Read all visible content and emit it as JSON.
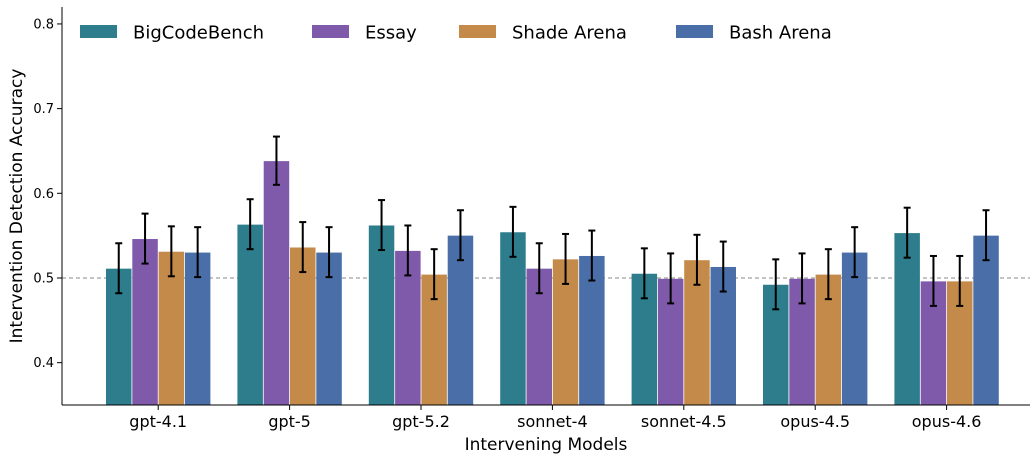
{
  "chart_data": {
    "type": "bar",
    "xlabel": "Intervening Models",
    "ylabel": "Intervention Detection Accuracy",
    "ylim": [
      0.35,
      0.82
    ],
    "yticks": [
      "0.4",
      "0.5",
      "0.6",
      "0.7",
      "0.8"
    ],
    "reference_line": 0.5,
    "legend_position": "top-left",
    "categories": [
      "gpt-4.1",
      "gpt-5",
      "gpt-5.2",
      "sonnet-4",
      "sonnet-4.5",
      "opus-4.5",
      "opus-4.6"
    ],
    "series": [
      {
        "name": "BigCodeBench",
        "color": "#2e7d8c",
        "values": [
          0.511,
          0.563,
          0.562,
          0.554,
          0.505,
          0.492,
          0.553
        ],
        "error_low": [
          0.482,
          0.534,
          0.533,
          0.525,
          0.476,
          0.463,
          0.524
        ],
        "error_high": [
          0.541,
          0.593,
          0.592,
          0.584,
          0.535,
          0.522,
          0.583
        ]
      },
      {
        "name": "Essay",
        "color": "#7f5aaa",
        "values": [
          0.546,
          0.638,
          0.532,
          0.511,
          0.499,
          0.499,
          0.496
        ],
        "error_low": [
          0.517,
          0.61,
          0.503,
          0.482,
          0.47,
          0.47,
          0.467
        ],
        "error_high": [
          0.576,
          0.667,
          0.562,
          0.541,
          0.529,
          0.529,
          0.526
        ]
      },
      {
        "name": "Shade Arena",
        "color": "#c48a4a",
        "values": [
          0.531,
          0.536,
          0.504,
          0.522,
          0.521,
          0.504,
          0.496
        ],
        "error_low": [
          0.502,
          0.507,
          0.475,
          0.493,
          0.492,
          0.475,
          0.467
        ],
        "error_high": [
          0.561,
          0.566,
          0.534,
          0.552,
          0.551,
          0.534,
          0.526
        ]
      },
      {
        "name": "Bash Arena",
        "color": "#4a6fa8",
        "values": [
          0.53,
          0.53,
          0.55,
          0.526,
          0.513,
          0.53,
          0.55
        ],
        "error_low": [
          0.501,
          0.501,
          0.521,
          0.497,
          0.484,
          0.501,
          0.521
        ],
        "error_high": [
          0.56,
          0.56,
          0.58,
          0.556,
          0.543,
          0.56,
          0.58
        ]
      }
    ]
  }
}
